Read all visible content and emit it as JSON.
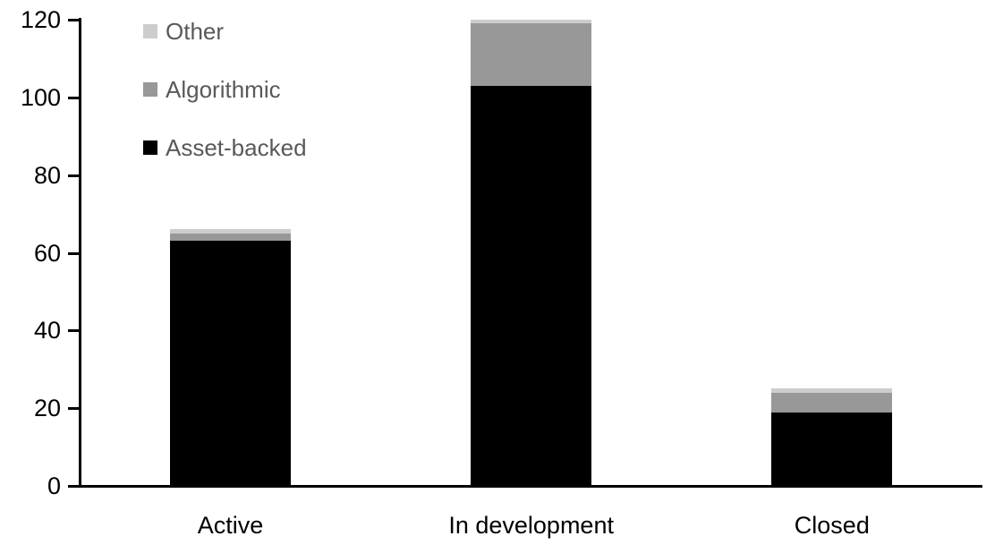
{
  "chart_data": {
    "type": "bar",
    "stacked": true,
    "title": "",
    "xlabel": "",
    "ylabel": "",
    "categories": [
      "Active",
      "In development",
      "Closed"
    ],
    "series": [
      {
        "name": "Asset-backed",
        "color": "#000000",
        "values": [
          63,
          103,
          19
        ]
      },
      {
        "name": "Algorithmic",
        "color": "#989898",
        "values": [
          2,
          16,
          5
        ]
      },
      {
        "name": "Other",
        "color": "#cdcdcd",
        "values": [
          1,
          1,
          1
        ]
      }
    ],
    "totals": [
      66,
      120,
      25
    ],
    "ylim": [
      0,
      120
    ],
    "yticks": [
      0,
      20,
      40,
      60,
      80,
      100,
      120
    ],
    "grid": false,
    "legend_position": "top-left",
    "legend_order": [
      "Other",
      "Algorithmic",
      "Asset-backed"
    ]
  },
  "colors": {
    "background": "#ffffff",
    "axis": "#000000",
    "tick_label_text": "#000000",
    "x_label_text": "#000000",
    "legend_text": "#595959"
  }
}
